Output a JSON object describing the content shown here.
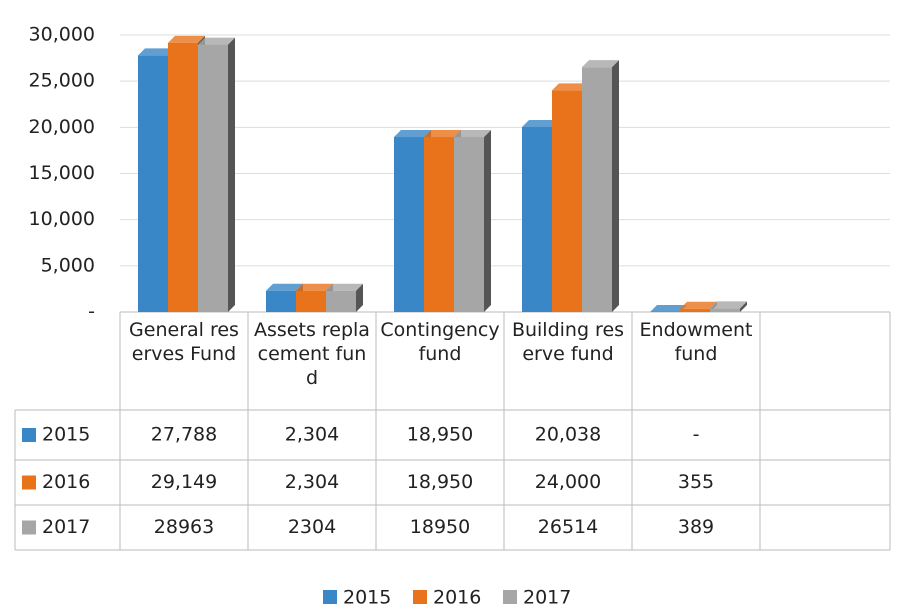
{
  "chart_data": {
    "type": "bar",
    "categories": [
      "General reserves Fund",
      "Assets replacement fund",
      "Contingency fund",
      "Building reserve fund",
      "Endowment fund"
    ],
    "series": [
      {
        "name": "2015",
        "color": "#3a87c8",
        "values": [
          27788,
          2304,
          18950,
          20038,
          0
        ],
        "value_labels": [
          "27,788",
          "2,304",
          "18,950",
          "20,038",
          "-"
        ]
      },
      {
        "name": "2016",
        "color": "#e8731a",
        "values": [
          29149,
          2304,
          18950,
          24000,
          355
        ],
        "value_labels": [
          "29,149",
          "2,304",
          "18,950",
          "24,000",
          "355"
        ]
      },
      {
        "name": "2017",
        "color": "#a6a6a6",
        "values": [
          28963,
          2304,
          18950,
          26514,
          389
        ]
      }
    ],
    "ylim": [
      0,
      30000
    ],
    "yticks": [
      {
        "value": 0,
        "label": "-"
      },
      {
        "value": 5000,
        "label": "5,000"
      },
      {
        "value": 10000,
        "label": "10,000"
      },
      {
        "value": 15000,
        "label": "15,000"
      },
      {
        "value": 20000,
        "label": "20,000"
      },
      {
        "value": 25000,
        "label": "25,000"
      },
      {
        "value": 30000,
        "label": "30,000"
      }
    ],
    "grid": true,
    "legend": "bottom"
  }
}
